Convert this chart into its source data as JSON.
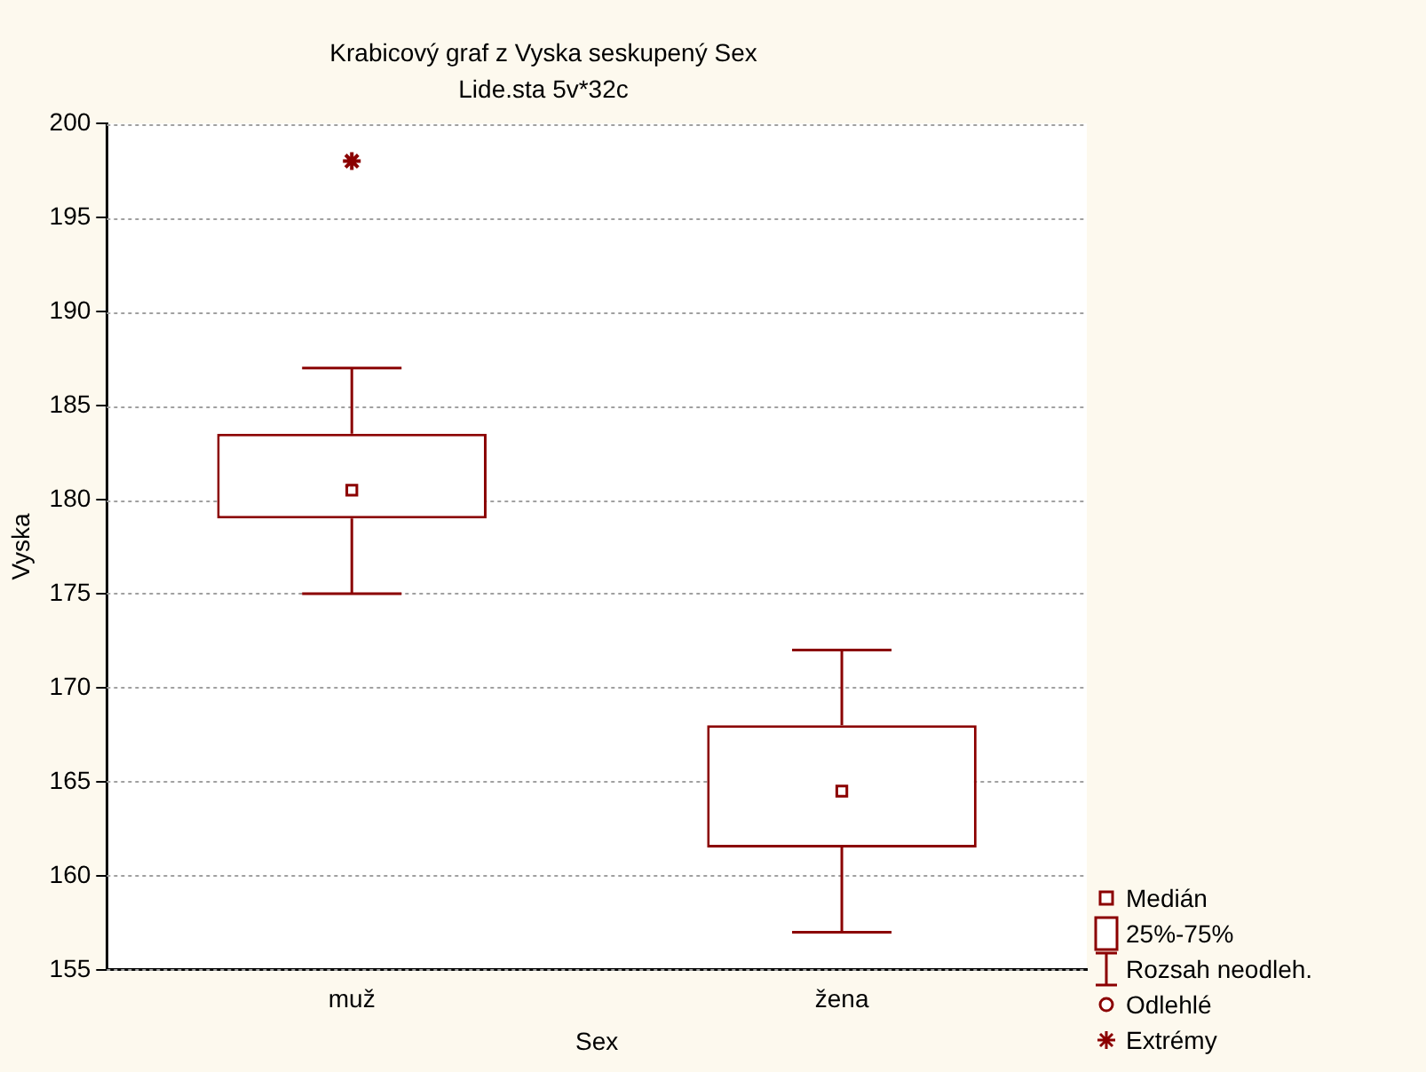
{
  "chart_data": {
    "type": "box",
    "title": "Krabicový graf z Vyska seskupený Sex",
    "subtitle": "Lide.sta 5v*32c",
    "xlabel": "Sex",
    "ylabel": "Vyska",
    "categories": [
      "muž",
      "žena"
    ],
    "series": [
      {
        "color": "#8b0000",
        "boxes": [
          {
            "low": 175,
            "q1": 179,
            "median": 180.5,
            "q3": 183.5,
            "high": 187,
            "outliers": [
              198
            ]
          },
          {
            "low": 157,
            "q1": 161.5,
            "median": 164.5,
            "q3": 168,
            "high": 172
          }
        ]
      }
    ],
    "ylim": [
      155,
      200
    ],
    "yticks": [
      155,
      160,
      165,
      170,
      175,
      180,
      185,
      190,
      195,
      200
    ],
    "grid": "y",
    "marker": "star",
    "annotations": [
      "Medián",
      "25%-75%",
      "Rozsah neodleh.",
      "Odlehlé",
      "Extrémy"
    ]
  }
}
